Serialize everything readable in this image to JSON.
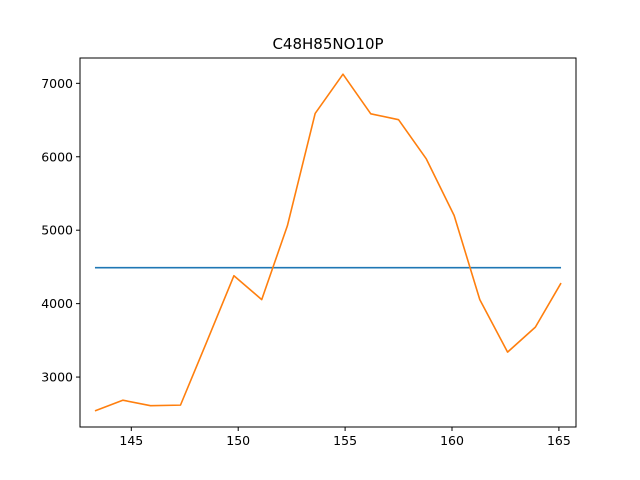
{
  "chart_data": {
    "type": "line",
    "title": "C48H85NO10P",
    "xlabel": "",
    "ylabel": "",
    "xlim": [
      142.6,
      165.8
    ],
    "ylim": [
      2320,
      7345
    ],
    "x_ticks": [
      145,
      150,
      155,
      160,
      165
    ],
    "y_ticks": [
      3000,
      4000,
      5000,
      6000,
      7000
    ],
    "grid": false,
    "legend": "none",
    "series": [
      {
        "color": "#1f77b4",
        "x": [
          143.3,
          165.1
        ],
        "y": [
          4490,
          4490
        ]
      },
      {
        "color": "#ff7f0e",
        "x": [
          143.3,
          144.6,
          145.9,
          147.3,
          148.5,
          149.8,
          151.1,
          152.3,
          153.6,
          154.9,
          156.2,
          157.5,
          158.8,
          160.1,
          161.3,
          162.6,
          163.9,
          165.1
        ],
        "y": [
          2540,
          2685,
          2610,
          2618,
          3460,
          4380,
          4055,
          5060,
          6590,
          7125,
          6585,
          6505,
          5970,
          5200,
          4055,
          3340,
          3680,
          4280
        ]
      }
    ]
  }
}
